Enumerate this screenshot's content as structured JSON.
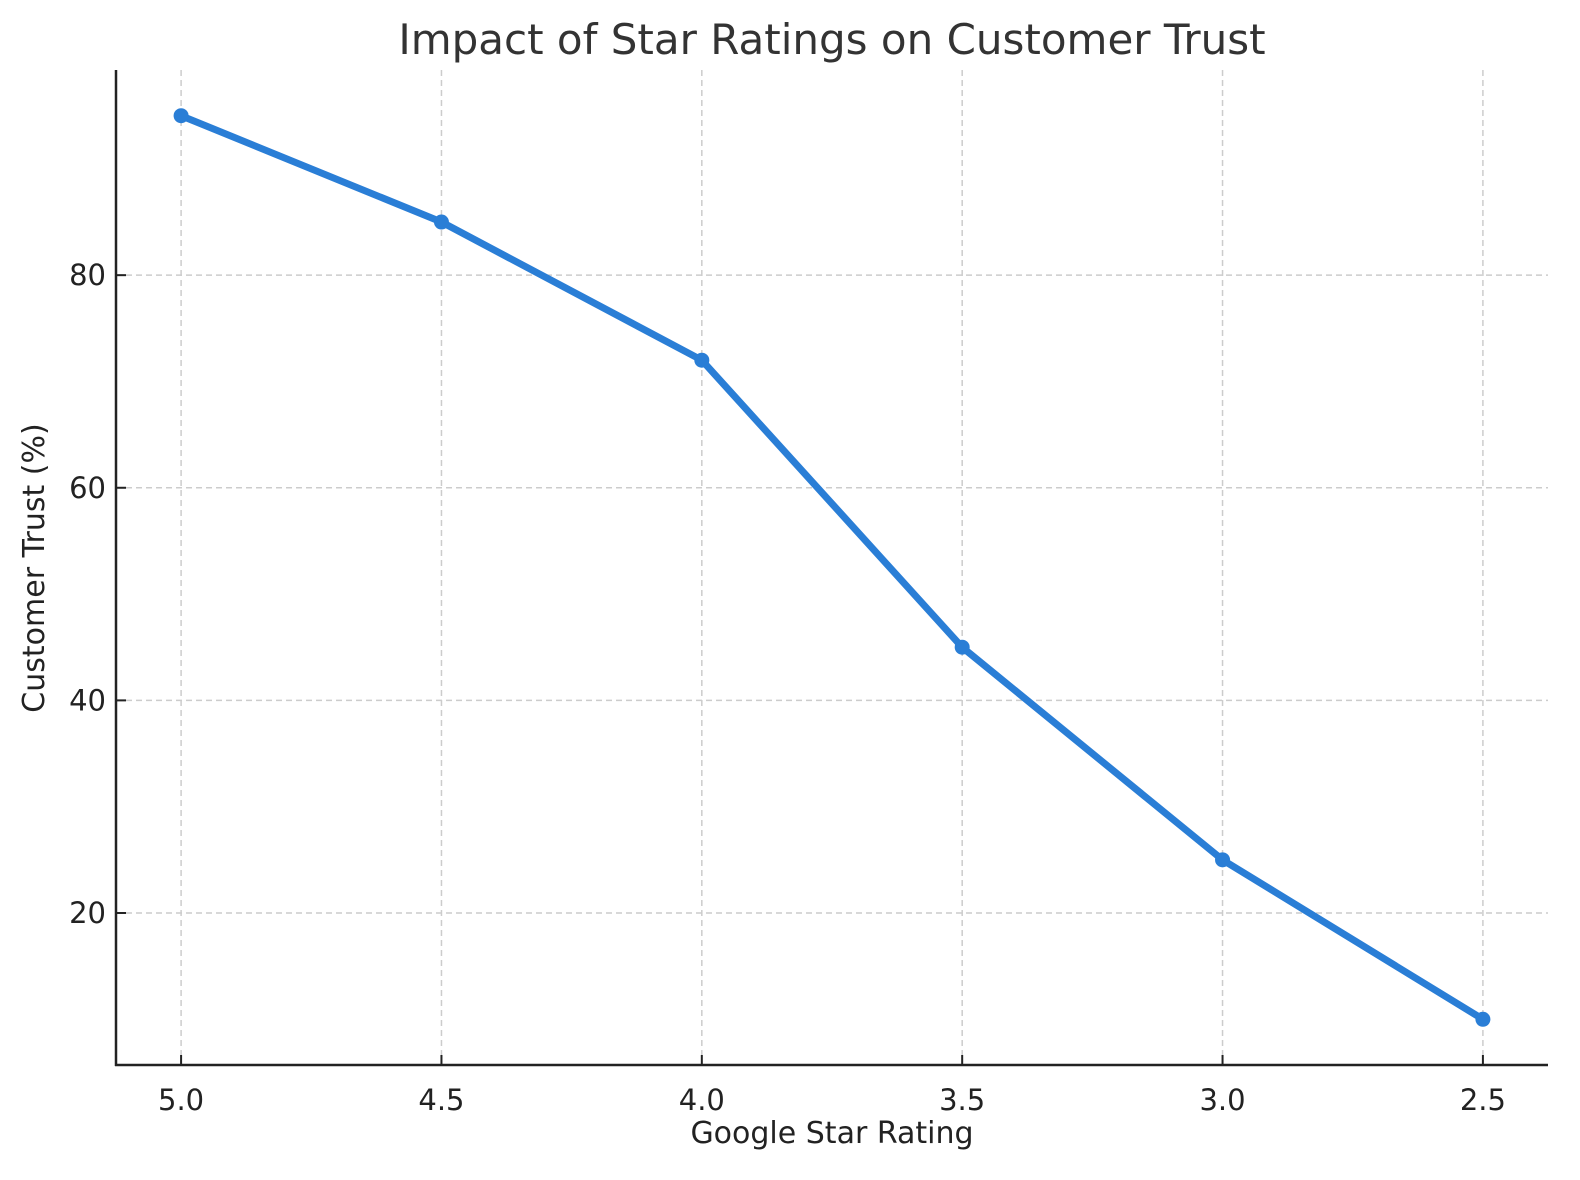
{
  "chart_data": {
    "type": "line",
    "title": "Impact of Star Ratings on Customer Trust",
    "xlabel": "Google Star Rating",
    "ylabel": "Customer Trust (%)",
    "categories": [
      "5.0",
      "4.5",
      "4.0",
      "3.5",
      "3.0",
      "2.5"
    ],
    "x": [
      5.0,
      4.5,
      4.0,
      3.5,
      3.0,
      2.5
    ],
    "series": [
      {
        "name": "Customer Trust",
        "values": [
          95,
          85,
          72,
          45,
          25,
          10
        ],
        "color": "#2a7ed6"
      }
    ],
    "x_ticks": [
      "5.0",
      "4.5",
      "4.0",
      "3.5",
      "3.0",
      "2.5"
    ],
    "y_ticks": [
      20,
      40,
      60,
      80
    ],
    "xlim": [
      5.125,
      2.375
    ],
    "ylim": [
      5.7,
      99.3
    ],
    "x_inverted": true,
    "grid": true,
    "grid_style": "dashed",
    "legend": null,
    "marker": "circle"
  }
}
